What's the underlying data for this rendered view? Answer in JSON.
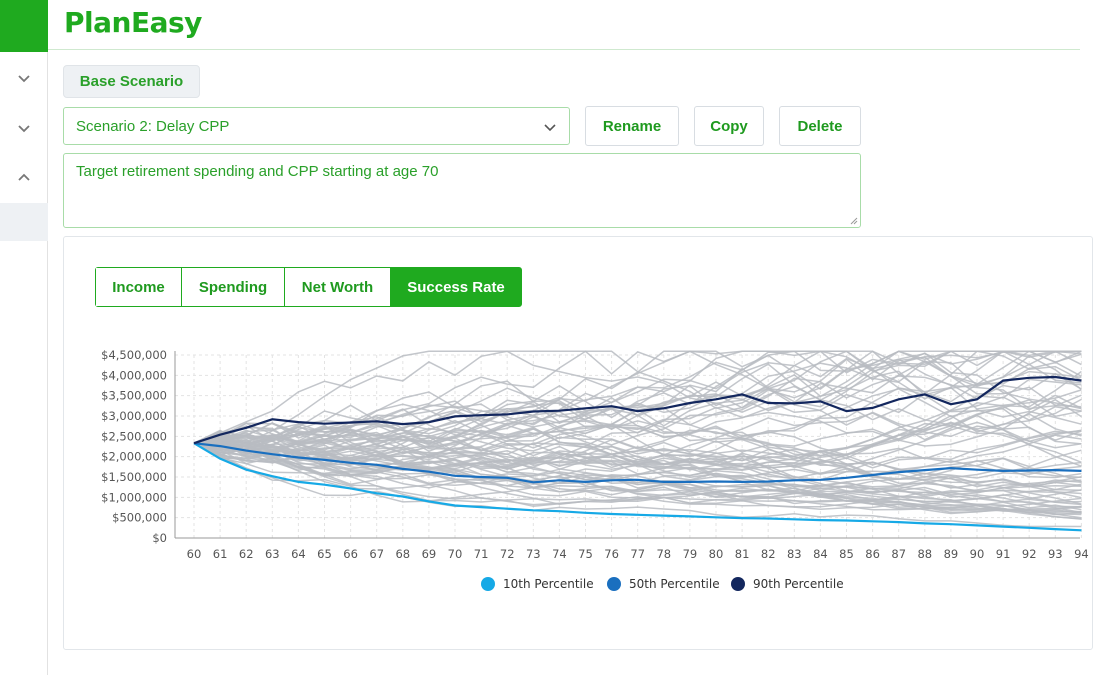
{
  "app": {
    "title": "PlanEasy"
  },
  "sidebar": {
    "items": [
      {
        "icon": "chevron-down-icon"
      },
      {
        "icon": "chevron-down-icon"
      },
      {
        "icon": "chevron-up-icon"
      }
    ]
  },
  "scenario": {
    "base_label": "Base Scenario",
    "selected": "Scenario 2: Delay CPP",
    "rename_label": "Rename",
    "copy_label": "Copy",
    "delete_label": "Delete",
    "description": "Target retirement spending and CPP starting at age 70"
  },
  "tabs": [
    {
      "label": "Income",
      "active": false
    },
    {
      "label": "Spending",
      "active": false
    },
    {
      "label": "Net Worth",
      "active": false
    },
    {
      "label": "Success Rate",
      "active": true
    }
  ],
  "colors": {
    "brand": "#1faa1f",
    "p10": "#16a9e6",
    "p50": "#1a6fbf",
    "p90": "#13275e",
    "sim": "#b8bcc2"
  },
  "chart_data": {
    "type": "line",
    "x": [
      60,
      61,
      62,
      63,
      64,
      65,
      66,
      67,
      68,
      69,
      70,
      71,
      72,
      73,
      74,
      75,
      76,
      77,
      78,
      79,
      80,
      81,
      82,
      83,
      84,
      85,
      86,
      87,
      88,
      89,
      90,
      91,
      92,
      93,
      94
    ],
    "ylim": [
      0,
      4500000
    ],
    "yticks": [
      "$0",
      "$500,000",
      "$1,000,000",
      "$1,500,000",
      "$2,000,000",
      "$2,500,000",
      "$3,000,000",
      "$3,500,000",
      "$4,000,000",
      "$4,500,000"
    ],
    "grid": true,
    "legend_position": "bottom",
    "series": [
      {
        "name": "10th Percentile",
        "values": [
          2330000,
          1950000,
          1680000,
          1520000,
          1380000,
          1310000,
          1220000,
          1100000,
          1020000,
          900000,
          800000,
          760000,
          720000,
          680000,
          660000,
          620000,
          590000,
          570000,
          550000,
          530000,
          510000,
          490000,
          480000,
          460000,
          440000,
          430000,
          410000,
          390000,
          360000,
          340000,
          310000,
          280000,
          250000,
          220000,
          190000
        ]
      },
      {
        "name": "50th Percentile",
        "values": [
          2330000,
          2260000,
          2150000,
          2060000,
          1980000,
          1920000,
          1850000,
          1800000,
          1700000,
          1630000,
          1530000,
          1500000,
          1480000,
          1370000,
          1420000,
          1380000,
          1420000,
          1430000,
          1380000,
          1380000,
          1390000,
          1380000,
          1390000,
          1420000,
          1430000,
          1480000,
          1550000,
          1620000,
          1670000,
          1720000,
          1680000,
          1650000,
          1660000,
          1670000,
          1650000
        ]
      },
      {
        "name": "90th Percentile",
        "values": [
          2330000,
          2540000,
          2710000,
          2920000,
          2850000,
          2810000,
          2840000,
          2870000,
          2800000,
          2850000,
          2990000,
          3020000,
          3040000,
          3110000,
          3130000,
          3190000,
          3240000,
          3120000,
          3190000,
          3320000,
          3410000,
          3530000,
          3320000,
          3310000,
          3360000,
          3120000,
          3200000,
          3410000,
          3530000,
          3290000,
          3410000,
          3870000,
          3940000,
          3960000,
          3870000
        ]
      }
    ]
  }
}
